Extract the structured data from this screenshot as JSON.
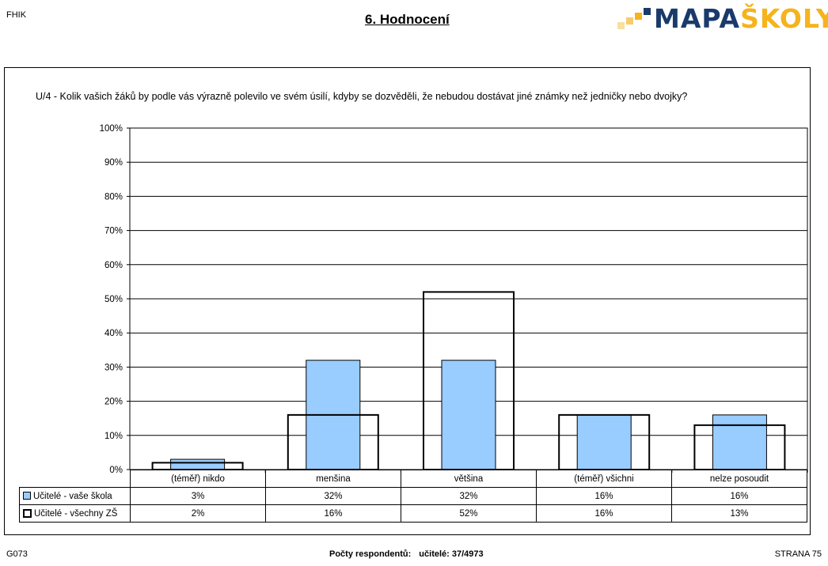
{
  "header": {
    "left": "FHIK",
    "title": "6. Hodnocení",
    "logo_part1": "MAPA",
    "logo_part2": "ŠKOLY"
  },
  "question": "U/4 - Kolik vašich žáků by podle vás výrazně polevilo ve svém úsilí, kdyby se dozvěděli, že nebudou dostávat jiné známky než jedničky nebo dvojky?",
  "colors": {
    "school": "#99ccff",
    "all": "#ffffff",
    "logo_blue": "#1a3a6b",
    "logo_orange": "#f5b31c"
  },
  "chart_data": {
    "type": "bar",
    "categories": [
      "(téměř) nikdo",
      "menšina",
      "většina",
      "(téměř) všichni",
      "nelze posoudit"
    ],
    "series": [
      {
        "name": "Učitelé - vaše škola",
        "values": [
          3,
          32,
          32,
          16,
          16
        ],
        "labels": [
          "3%",
          "32%",
          "32%",
          "16%",
          "16%"
        ]
      },
      {
        "name": "Učitelé - všechny ZŠ",
        "values": [
          2,
          16,
          52,
          16,
          13
        ],
        "labels": [
          "2%",
          "16%",
          "52%",
          "16%",
          "13%"
        ]
      }
    ],
    "y_ticks": [
      "0%",
      "10%",
      "20%",
      "30%",
      "40%",
      "50%",
      "60%",
      "70%",
      "80%",
      "90%",
      "100%"
    ],
    "ylim": [
      0,
      100
    ],
    "grid": true,
    "legend": "data-table"
  },
  "footer": {
    "left": "G073",
    "center_label": "Počty respondentů:",
    "center_value": "učitelé: 37/4973",
    "right": "STRANA 75"
  }
}
